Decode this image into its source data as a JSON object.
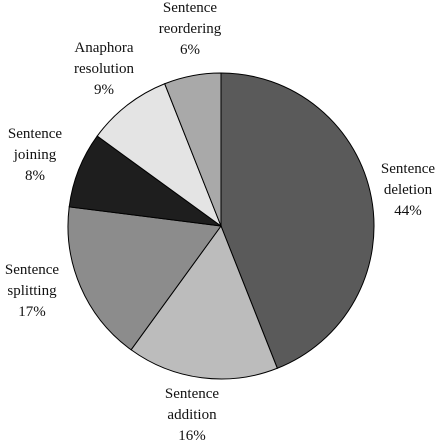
{
  "chart_data": {
    "type": "pie",
    "title": "",
    "slices": [
      {
        "label_lines": [
          "Sentence",
          "deletion"
        ],
        "pct_text": "44%",
        "value": 44,
        "color": "#5a5a5a"
      },
      {
        "label_lines": [
          "Sentence",
          "addition"
        ],
        "pct_text": "16%",
        "value": 16,
        "color": "#bcbcbc"
      },
      {
        "label_lines": [
          "Sentence",
          "splitting"
        ],
        "pct_text": "17%",
        "value": 17,
        "color": "#8c8c8c"
      },
      {
        "label_lines": [
          "Sentence",
          "joining"
        ],
        "pct_text": "8%",
        "value": 8,
        "color": "#1e1e1e"
      },
      {
        "label_lines": [
          "Anaphora",
          "resolution"
        ],
        "pct_text": "9%",
        "value": 9,
        "color": "#e4e4e4"
      },
      {
        "label_lines": [
          "Sentence",
          "reordering"
        ],
        "pct_text": "6%",
        "value": 6,
        "color": "#a9a9a9"
      }
    ],
    "start": "top, clockwise",
    "legend": "none"
  }
}
